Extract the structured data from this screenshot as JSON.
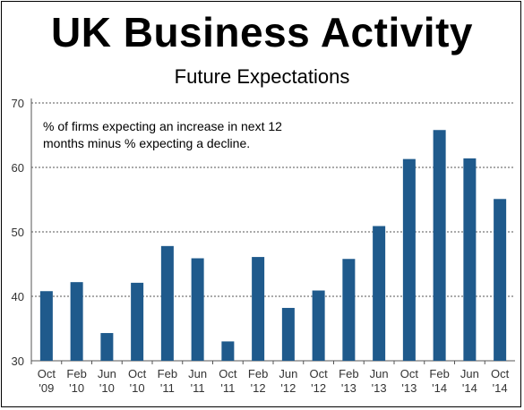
{
  "header": {
    "title": "UK Business Activity",
    "subtitle": "Future Expectations"
  },
  "chart_data": {
    "type": "bar",
    "annotation": [
      "% of firms expecting an increase in next 12",
      "months minus % expecting a decline."
    ],
    "categories": [
      [
        "Oct",
        "'09"
      ],
      [
        "Feb",
        "'10"
      ],
      [
        "Jun",
        "'10"
      ],
      [
        "Oct",
        "'10"
      ],
      [
        "Feb",
        "'11"
      ],
      [
        "Jun",
        "'11"
      ],
      [
        "Oct",
        "'11"
      ],
      [
        "Feb",
        "'12"
      ],
      [
        "Jun",
        "'12"
      ],
      [
        "Oct",
        "'12"
      ],
      [
        "Feb",
        "'13"
      ],
      [
        "Jun",
        "'13"
      ],
      [
        "Oct",
        "'13"
      ],
      [
        "Feb",
        "'14"
      ],
      [
        "Jun",
        "'14"
      ],
      [
        "Oct",
        "'14"
      ]
    ],
    "values": [
      40.8,
      42.2,
      34.3,
      42.1,
      47.8,
      45.9,
      33.0,
      46.1,
      38.2,
      40.9,
      45.8,
      50.9,
      61.3,
      65.8,
      61.4,
      55.1
    ],
    "ylim": [
      30,
      70
    ],
    "yticks": [
      30,
      40,
      50,
      60,
      70
    ],
    "grid": "horizontal dashed",
    "bar_color": "#1f5a8c",
    "xlabel": "",
    "ylabel": ""
  }
}
